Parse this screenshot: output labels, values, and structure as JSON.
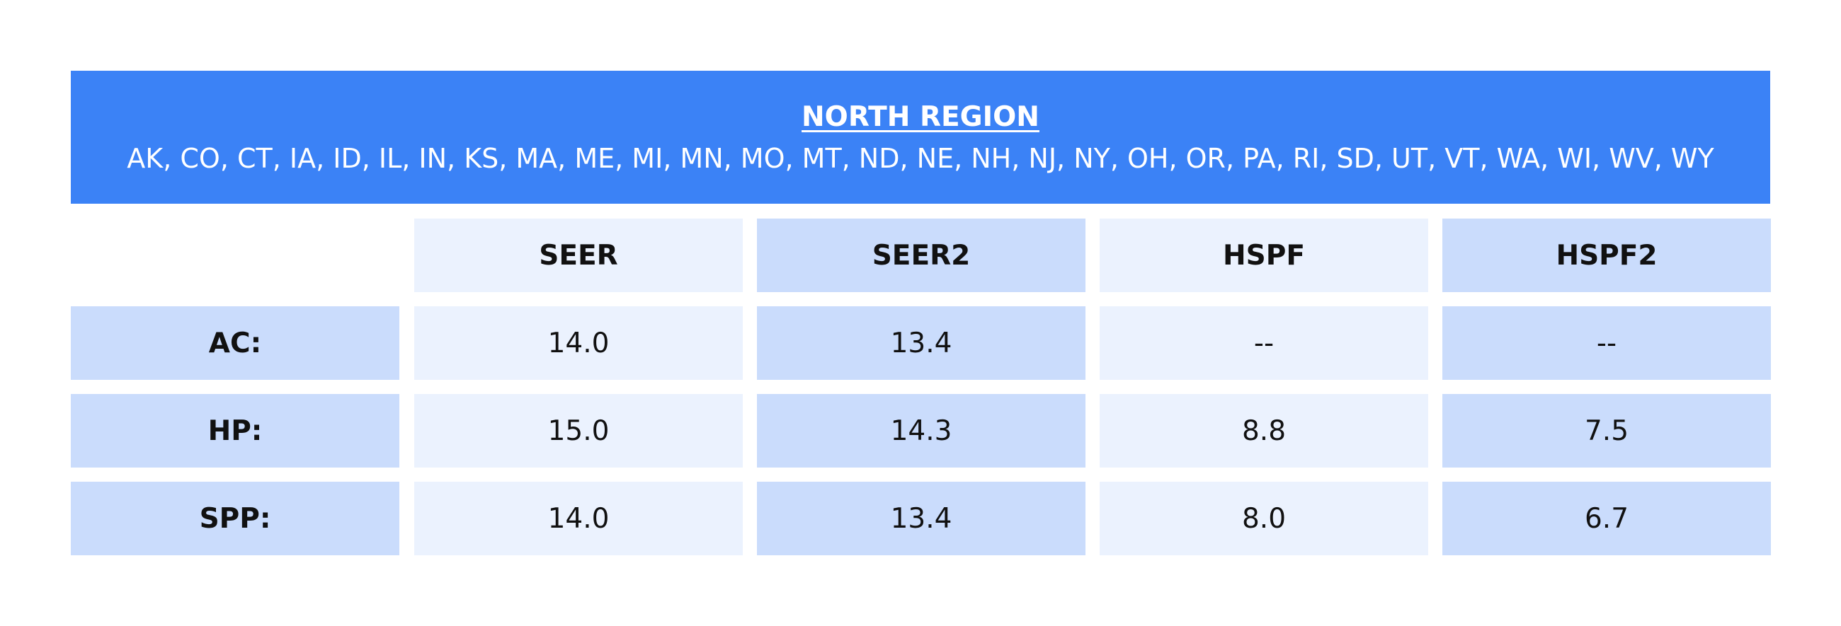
{
  "region": {
    "title": "NORTH REGION",
    "states": "AK, CO, CT, IA, ID, IL, IN, KS, MA, ME, MI, MN, MO, MT, ND, NE, NH, NJ, NY, OH, OR, PA, RI, SD, UT, VT, WA, WI, WV, WY"
  },
  "table": {
    "columns": [
      "SEER",
      "SEER2",
      "HSPF",
      "HSPF2"
    ],
    "rows": [
      {
        "label": "AC:",
        "values": [
          "14.0",
          "13.4",
          "--",
          "--"
        ]
      },
      {
        "label": "HP:",
        "values": [
          "15.0",
          "14.3",
          "8.8",
          "7.5"
        ]
      },
      {
        "label": "SPP:",
        "values": [
          "14.0",
          "13.4",
          "8.0",
          "6.7"
        ]
      }
    ]
  },
  "colors": {
    "banner": "#3b82f6",
    "cell_light": "#ebf2fe",
    "cell_mid": "#cadcfc"
  }
}
